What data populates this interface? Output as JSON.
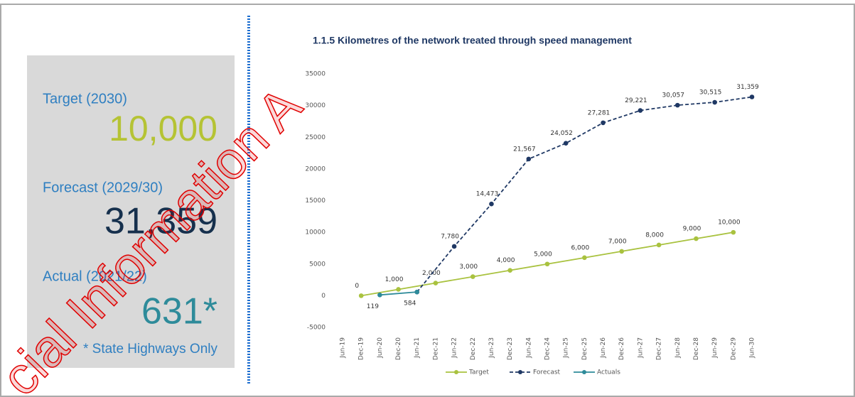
{
  "panel": {
    "target_label": "Target (2030)",
    "target_value": "10,000",
    "forecast_label": "Forecast (2029/30)",
    "forecast_value": "31,359",
    "actual_label": "Actual (2021/22)",
    "actual_value": "631*",
    "note": "* State Highways Only"
  },
  "watermark": "cial Information A",
  "chart_data": {
    "type": "line",
    "title": "1.1.5  Kilometres of the network treated through speed management",
    "categories": [
      "Jun-19",
      "Dec-19",
      "Jun-20",
      "Dec-20",
      "Jun-21",
      "Dec-21",
      "Jun-22",
      "Dec-22",
      "Jun-23",
      "Dec-23",
      "Jun-24",
      "Dec-24",
      "Jun-25",
      "Dec-25",
      "Jun-26",
      "Dec-26",
      "Jun-27",
      "Dec-27",
      "Jun-28",
      "Dec-28",
      "Jun-29",
      "Dec-29",
      "Jun-30"
    ],
    "ylim": [
      -5000,
      35000
    ],
    "yticks": [
      -5000,
      0,
      5000,
      10000,
      15000,
      20000,
      25000,
      30000,
      35000
    ],
    "series": [
      {
        "name": "Target",
        "color": "#a9c23f",
        "dash": false,
        "x": [
          "Dec-19",
          "Dec-20",
          "Dec-21",
          "Dec-22",
          "Dec-23",
          "Dec-24",
          "Dec-25",
          "Dec-26",
          "Dec-27",
          "Dec-28",
          "Dec-29"
        ],
        "values": [
          0,
          1000,
          2000,
          3000,
          4000,
          5000,
          6000,
          7000,
          8000,
          9000,
          10000
        ],
        "value_labels": [
          "0",
          "1,000",
          "2,000",
          "3,000",
          "4,000",
          "5,000",
          "6,000",
          "7,000",
          "8,000",
          "9,000",
          "10,000"
        ]
      },
      {
        "name": "Forecast",
        "color": "#1f3864",
        "dash": true,
        "x": [
          "Jun-21",
          "Jun-22",
          "Jun-23",
          "Jun-24",
          "Jun-25",
          "Jun-26",
          "Jun-27",
          "Jun-28",
          "Jun-29",
          "Jun-30"
        ],
        "values": [
          584,
          7780,
          14473,
          21567,
          24052,
          27281,
          29221,
          30057,
          30515,
          31359
        ],
        "value_labels": [
          null,
          "7,780",
          "14,473",
          "21,567",
          "24,052",
          "27,281",
          "29,221",
          "30,057",
          "30,515",
          "31,359"
        ]
      },
      {
        "name": "Actuals",
        "color": "#2e8b9a",
        "dash": false,
        "x": [
          "Jun-20",
          "Jun-21"
        ],
        "values": [
          119,
          584
        ],
        "value_labels": [
          "119",
          "584"
        ]
      }
    ]
  }
}
